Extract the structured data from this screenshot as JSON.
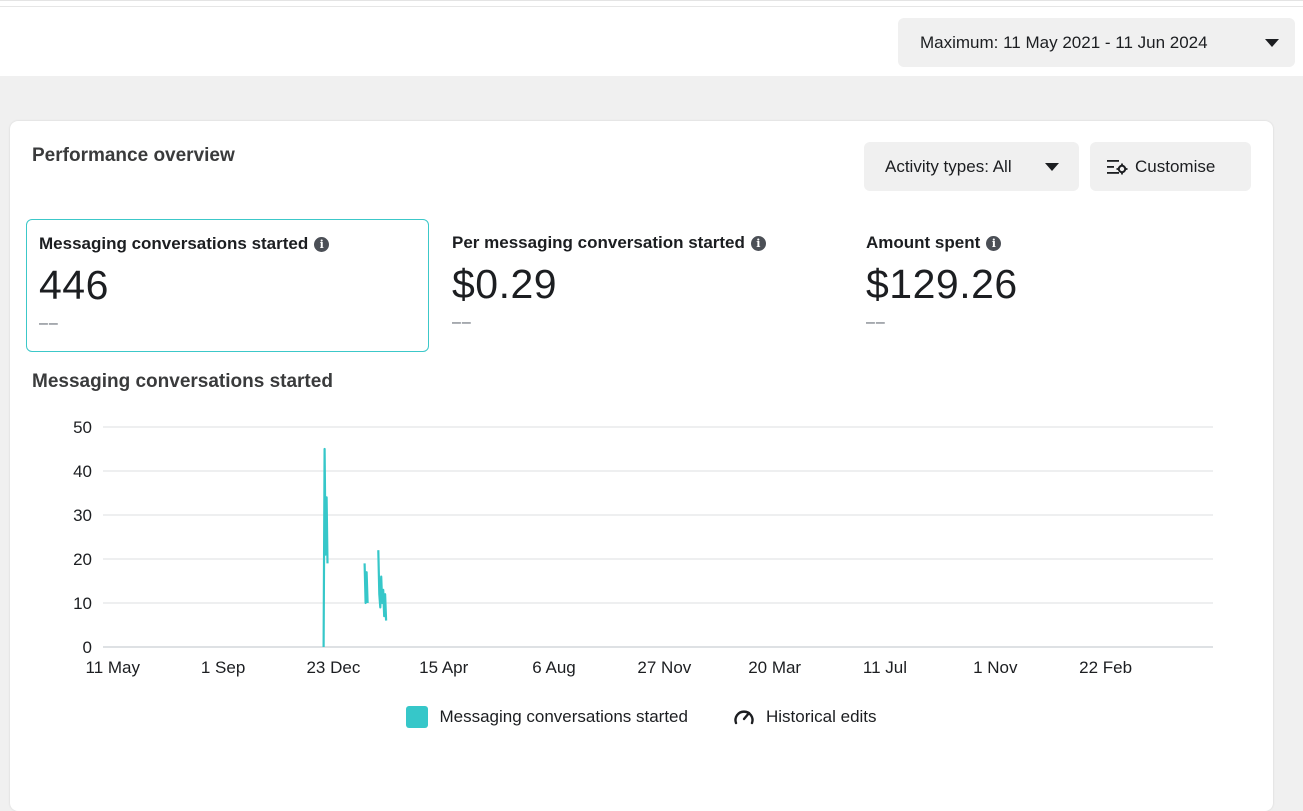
{
  "header": {
    "date_range_label": "Maximum: 11 May 2021 - 11 Jun 2024"
  },
  "card": {
    "title": "Performance overview",
    "activity_label": "Activity types: All",
    "customise_label": "Customise"
  },
  "metrics": [
    {
      "label": "Messaging conversations started",
      "value": "446",
      "delta": "––",
      "selected": true
    },
    {
      "label": "Per messaging conversation started",
      "value": "$0.29",
      "delta": "––",
      "selected": false
    },
    {
      "label": "Amount spent",
      "value": "$129.26",
      "delta": "––",
      "selected": false
    }
  ],
  "chart_title": "Messaging conversations started",
  "legend": {
    "series_label": "Messaging conversations started",
    "edits_label": "Historical edits"
  },
  "colors": {
    "accent": "#36c7c9",
    "grid": "#dddfe2"
  },
  "chart_data": {
    "type": "line",
    "ylim": [
      0,
      50
    ],
    "yticks": [
      0,
      10,
      20,
      30,
      40,
      50
    ],
    "xlim": [
      "2021-05-01",
      "2024-06-11"
    ],
    "xticks": [
      {
        "label": "11 May",
        "date": "2021-05-11"
      },
      {
        "label": "1 Sep",
        "date": "2021-09-01"
      },
      {
        "label": "23 Dec",
        "date": "2021-12-23"
      },
      {
        "label": "15 Apr",
        "date": "2022-04-15"
      },
      {
        "label": "6 Aug",
        "date": "2022-08-06"
      },
      {
        "label": "27 Nov",
        "date": "2022-11-27"
      },
      {
        "label": "20 Mar",
        "date": "2023-03-20"
      },
      {
        "label": "11 Jul",
        "date": "2023-07-11"
      },
      {
        "label": "1 Nov",
        "date": "2023-11-01"
      },
      {
        "label": "22 Feb",
        "date": "2024-02-22"
      }
    ],
    "series": [
      {
        "name": "Messaging conversations started",
        "segments": [
          [
            {
              "x": "2021-12-13",
              "y": 0
            },
            {
              "x": "2021-12-14",
              "y": 45
            },
            {
              "x": "2021-12-15",
              "y": 21
            },
            {
              "x": "2021-12-16",
              "y": 34
            },
            {
              "x": "2021-12-17",
              "y": 19
            }
          ],
          [
            {
              "x": "2022-01-24",
              "y": 19
            },
            {
              "x": "2022-01-25",
              "y": 10
            },
            {
              "x": "2022-01-26",
              "y": 17
            },
            {
              "x": "2022-01-27",
              "y": 10
            }
          ],
          [
            {
              "x": "2022-02-07",
              "y": 22
            },
            {
              "x": "2022-02-08",
              "y": 12
            },
            {
              "x": "2022-02-09",
              "y": 9
            },
            {
              "x": "2022-02-10",
              "y": 16
            },
            {
              "x": "2022-02-11",
              "y": 10
            },
            {
              "x": "2022-02-12",
              "y": 13
            },
            {
              "x": "2022-02-13",
              "y": 7
            },
            {
              "x": "2022-02-14",
              "y": 12
            },
            {
              "x": "2022-02-15",
              "y": 6
            }
          ]
        ]
      }
    ],
    "grid": true,
    "legend_position": "bottom-center"
  }
}
